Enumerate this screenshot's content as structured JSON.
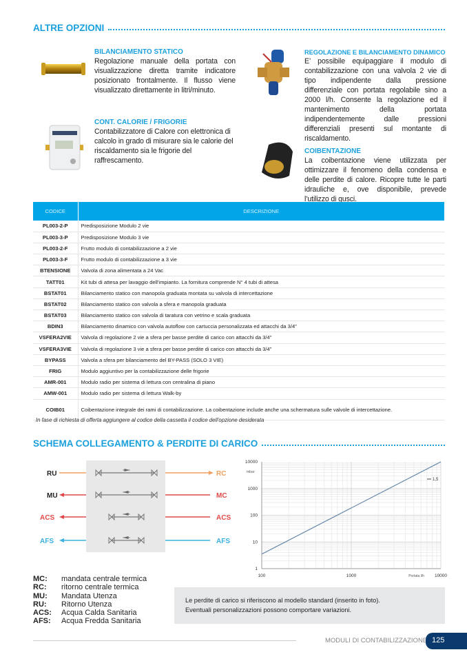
{
  "section1": {
    "title": "ALTRE OPZIONI",
    "items": [
      {
        "heading": "BILANCIAMENTO STATICO",
        "text": "Regolazione manuale della portata con visualizzazione diretta tramite indicatore posizionato frontalmente. Il flusso viene visualizzato direttamente in litri/minuto."
      },
      {
        "heading": "CONT. CALORIE / FRIGORIE",
        "text": "Contabilizzatore di Calore con elettronica di calcolo in grado di misurare sia le calorie del riscaldamento sia le frigorie del raffrescamento."
      },
      {
        "heading": "REGOLAZIONE E BILANCIAMENTO DINAMICO",
        "text": "E’ possibile equipaggiare il modulo di contabilizzazione con una valvola 2 vie di tipo indipendente dalla pressione differenziale con portata regolabile sino a 2000 l/h. Consente la regolazione ed il mantenimento della portata indipendentemente dalle pressioni differenziali presenti sul montante di riscaldamento."
      },
      {
        "heading": "COIBENTAZIONE",
        "text": "La coibentazione viene utilizzata per ottimizzare il fenomeno della condensa e delle perdite di calore. Ricopre tutte le parti idrauliche e, ove disponibile, prevede l’utilizzo di gusci."
      }
    ]
  },
  "table": {
    "headers": [
      "CODICE",
      "DESCRIZIONE"
    ],
    "rows": [
      [
        "PL003-2-P",
        "Predisposizione Modulo 2 vie"
      ],
      [
        "PL003-3-P",
        "Predisposizione Modulo 3 vie"
      ],
      [
        "PL003-2-F",
        "Frutto modulo di contabilizzazione a 2 vie"
      ],
      [
        "PL003-3-F",
        "Frutto modulo di contabilizzazione a 3 vie"
      ],
      [
        "BTENSIONE",
        "Valvola di zona alimentata a 24 Vac"
      ],
      [
        "TATT01",
        "Kit tubi di attesa per lavaggio dell'impianto. La fornitura comprende N° 4 tubi di attesa"
      ],
      [
        "BSTAT01",
        "Bilanciamento statico con manopola graduata montata su valvola di intercettazione"
      ],
      [
        "BSTAT02",
        "Bilanciamento statico con valvola a sfera e manopola graduata"
      ],
      [
        "BSTAT03",
        "Bilanciamento statico con valvola di taratura con vetrino e scala graduata"
      ],
      [
        "BDIN3",
        "Bilanciamento dinamico con valvola autoflow con cartuccia personalizzata ed attacchi da 3/4\""
      ],
      [
        "VSFERA2VIE",
        "Valvola di regolazione 2 vie a sfera per basse perdite di carico con attacchi da 3/4\""
      ],
      [
        "VSFERA3VIE",
        "Valvola di regolazione 3 vie a sfera per basse perdite di carico con attacchi da 3/4\""
      ],
      [
        "BYPASS",
        "Valvola a sfera per bilanciamento del BY-PASS (SOLO 3 VIE)"
      ],
      [
        "FRIG",
        "Modulo aggiuntivo per la contabilizzazione delle frigorie"
      ],
      [
        "AMR-001",
        "Modulo radio per sistema di lettura con centralina di piano"
      ],
      [
        "AMW-001",
        "Modulo radio per sistema di lettura Walk-by"
      ],
      [
        "COIB01",
        "Coibentazione integrale dei rami di contabilizzazione. La coibentazione include anche una schermatura sulle valvole di intercettazione."
      ]
    ],
    "note": "In fase di richiesta di offerta aggiungere al codice della cassetta il codice dell'opzione desiderata"
  },
  "section2": {
    "title": "SCHEMA COLLEGAMENTO & PERDITE DI CARICO",
    "diagram": {
      "left": [
        "RU",
        "MU",
        "ACS",
        "AFS"
      ],
      "right": [
        "RC",
        "MC",
        "ACS",
        "AFS"
      ],
      "colors": [
        "#f0a060",
        "#e04848",
        "#e04848",
        "#3ab0e0"
      ]
    },
    "legend": [
      [
        "MC:",
        "mandata centrale termica"
      ],
      [
        "RC:",
        "ritorno centrale termica"
      ],
      [
        "MU:",
        "Mandata Utenza"
      ],
      [
        "RU:",
        "Ritorno Utenza"
      ],
      [
        "ACS:",
        "Acqua Calda Sanitaria"
      ],
      [
        "AFS:",
        "Acqua Fredda Sanitaria"
      ]
    ],
    "note": [
      "Le perdite di carico si riferiscono al modello standard (inserito in foto).",
      "Eventuali personalizzazioni possono comportare variazioni."
    ]
  },
  "chart_data": {
    "type": "line",
    "x_scale": "log",
    "y_scale": "log",
    "xlim": [
      100,
      10000
    ],
    "ylim": [
      1,
      10000
    ],
    "x_ticks": [
      "100",
      "1000",
      "10000"
    ],
    "y_ticks": [
      "1",
      "10",
      "100",
      "1000",
      "10000"
    ],
    "ylabel": "mbar",
    "xlabel": "Portata l/h",
    "grid": true,
    "series": [
      {
        "name": "1,5",
        "x": [
          100,
          10000
        ],
        "y": [
          3.5,
          10000
        ]
      }
    ],
    "legend_placement": "top-right",
    "line_color": "#6688aa"
  },
  "footer": {
    "text": "MODULI DI CONTABILIZZAZIONE",
    "page": "125"
  }
}
